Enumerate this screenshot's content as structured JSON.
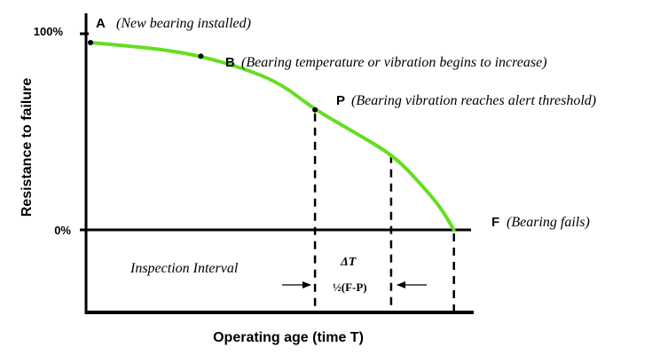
{
  "chart_data": {
    "type": "line",
    "xlabel": "Operating age (time T)",
    "ylabel": "Resistance to failure",
    "y_ticks": [
      {
        "label": "100%",
        "value": 100
      },
      {
        "label": "0%",
        "value": 0
      }
    ],
    "series": [
      {
        "color": "#66dd22",
        "points": [
          {
            "x": 0.0,
            "y": 100
          },
          {
            "x": 0.1,
            "y": 98.2
          },
          {
            "x": 0.2,
            "y": 96
          },
          {
            "x": 0.29,
            "y": 92.7
          },
          {
            "x": 0.4,
            "y": 86.4
          },
          {
            "x": 0.5,
            "y": 78.2
          },
          {
            "x": 0.59,
            "y": 64.1
          },
          {
            "x": 0.7,
            "y": 51.4
          },
          {
            "x": 0.8,
            "y": 39.1
          },
          {
            "x": 0.87,
            "y": 24
          },
          {
            "x": 0.92,
            "y": 12
          },
          {
            "x": 0.955,
            "y": 0
          }
        ]
      }
    ],
    "markers": [
      {
        "letter": "A",
        "label": "(New bearing installed)",
        "x": 0.0,
        "y": 100
      },
      {
        "letter": "B",
        "label": "(Bearing temperature or vibration begins to increase)",
        "x": 0.29,
        "y": 92.7
      },
      {
        "letter": "P",
        "label": "(Bearing vibration reaches alert threshold)",
        "x": 0.59,
        "y": 64.1
      },
      {
        "letter": "F",
        "label": "(Bearing fails)",
        "x": 0.955,
        "y": 0
      }
    ],
    "dashed_lines": [
      {
        "x": 0.59,
        "y_top": 64.1
      },
      {
        "x": 0.79,
        "y_top": 41.8
      },
      {
        "x": 0.955,
        "y_top": 0
      }
    ],
    "annotations": {
      "inspection_interval": "Inspection Interval",
      "delta_t": "ΔT",
      "half_fp": "½(F-P)"
    }
  }
}
